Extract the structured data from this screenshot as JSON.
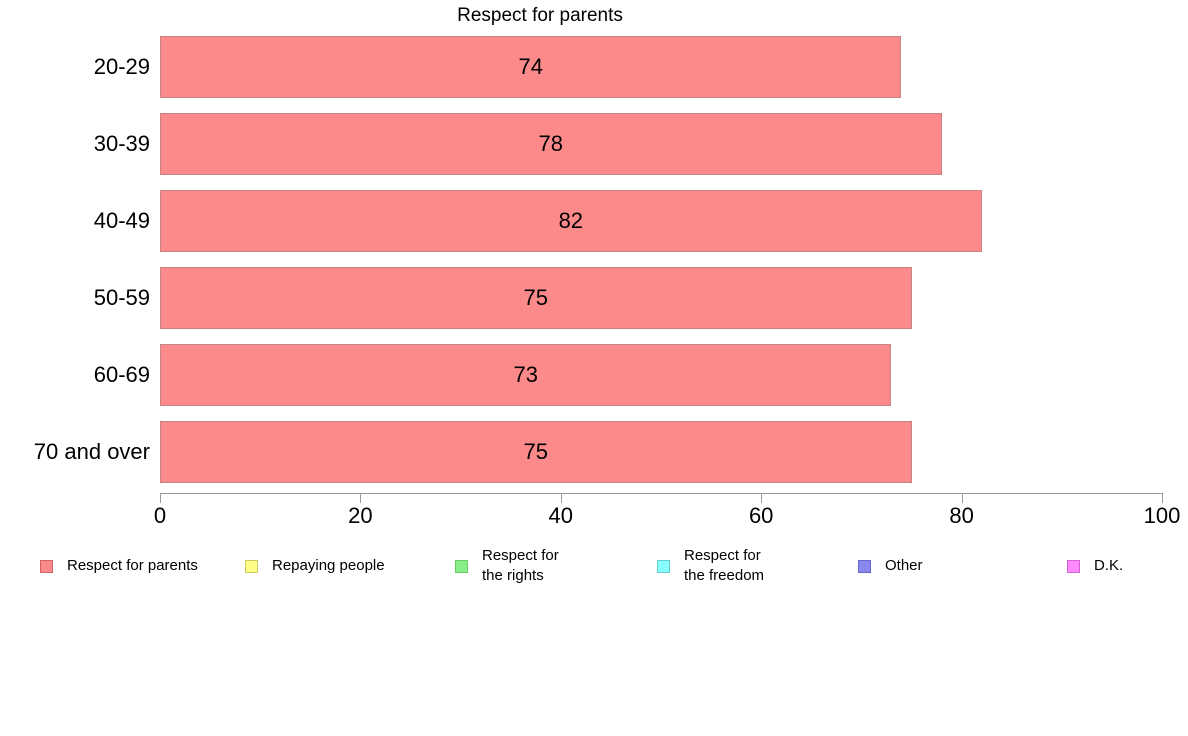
{
  "title": "Respect for parents",
  "chart_data": {
    "type": "bar",
    "orientation": "horizontal",
    "title": "Respect for parents",
    "categories": [
      "20-29",
      "30-39",
      "40-49",
      "50-59",
      "60-69",
      "70 and over"
    ],
    "values": [
      74,
      78,
      82,
      75,
      73,
      75
    ],
    "series_name": "Respect for parents",
    "xlabel": "",
    "ylabel": "",
    "xlim": [
      0,
      100
    ],
    "x_ticks": [
      0,
      20,
      40,
      60,
      80,
      100
    ],
    "value_labels": true,
    "grid": false,
    "legend_position": "bottom",
    "bar_color": "#fc8a8a",
    "bar_border_color": "#c88484",
    "axis_color": "#9a9a9a",
    "text_color": "#000000"
  },
  "legend": {
    "items": [
      {
        "name": "respect-for-parents",
        "label": "Respect for parents",
        "color": "#fc8a8a",
        "border": "#cc6666"
      },
      {
        "name": "repaying-people",
        "label": "Repaying people",
        "color": "#ffff88",
        "border": "#cccc66"
      },
      {
        "name": "respect-for-the-rights",
        "label": "Respect for\nthe rights",
        "color": "#88ee88",
        "border": "#66cc66"
      },
      {
        "name": "respect-for-the-freedom",
        "label": "Respect for\nthe freedom",
        "color": "#88ffff",
        "border": "#66cccc"
      },
      {
        "name": "other",
        "label": "Other",
        "color": "#8888ee",
        "border": "#6666cc"
      },
      {
        "name": "dk",
        "label": "D.K.",
        "color": "#ff88ff",
        "border": "#cc66cc"
      }
    ]
  }
}
